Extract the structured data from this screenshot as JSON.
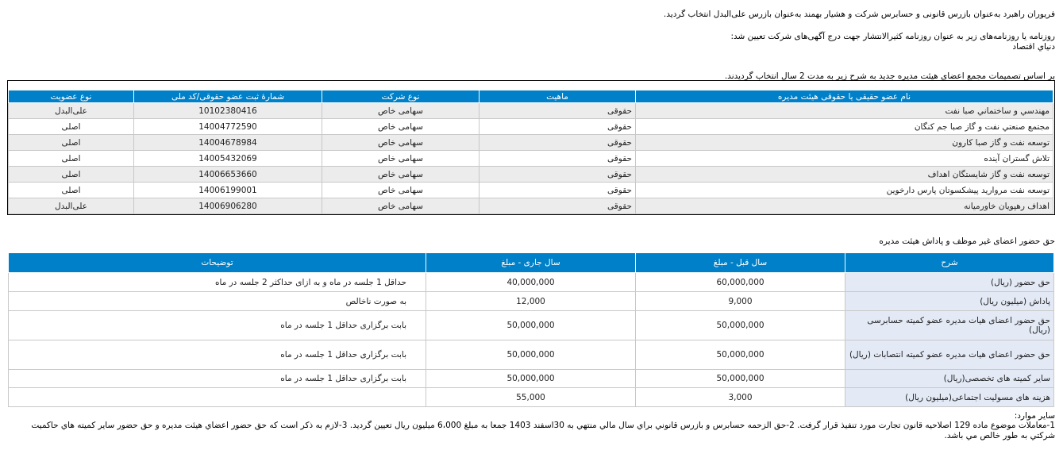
{
  "paragraphs": {
    "inspectors": "فریوران راهبرد  به‌عنوان بازرس قانونی و حسابرس شرکت و   هشیار بهمند  به‌عنوان بازرس علی‌البدل انتخاب گردید.",
    "newspaper_intro": "روزنامه یا روزنامه‌های زیر به عنوان روزنامه کثیرالانتشار جهت درج آگهی‌های شرکت تعیین شد:",
    "newspaper_name": "دنیاي اقتصاد",
    "board_intro": "بر اساس تصمیمات مجمع اعضای هیئت مدیره جدید به شرح زیر به مدت 2 سال انتخاب گردیدند."
  },
  "board_table": {
    "headers": [
      "نام عضو حقیقی یا حقوقی هیئت مدیره",
      "ماهیت",
      "نوع شرکت",
      "شمارهٔ ثبت عضو حقوقی/کد ملی",
      "نوع عضویت"
    ],
    "rows": [
      [
        "مهندسي و ساختماني صبا نفت",
        "حقوقی",
        "سهامی خاص",
        "10102380416",
        "علی‌البدل"
      ],
      [
        "مجتمع صنعتي نفت و گاز صبا جم كنگان",
        "حقوقی",
        "سهامی خاص",
        "14004772590",
        "اصلی"
      ],
      [
        "توسعه نفت و گاز صبا کارون",
        "حقوقی",
        "سهامی خاص",
        "14004678984",
        "اصلی"
      ],
      [
        "تلاش گستران آینده",
        "حقوقی",
        "سهامی خاص",
        "14005432069",
        "اصلی"
      ],
      [
        "توسعه نفت و گاز شایستگان اهداف",
        "حقوقی",
        "سهامی خاص",
        "14006653660",
        "اصلی"
      ],
      [
        "توسعه نفت مروارید پیشکسوتان پارس دارخوین",
        "حقوقی",
        "سهامی خاص",
        "14006199001",
        "اصلی"
      ],
      [
        "اهداف رهپویان خاورمیانه",
        "حقوقی",
        "سهامی خاص",
        "14006906280",
        "علی‌البدل"
      ]
    ]
  },
  "fees": {
    "title": "حق حضور اعضای غیر موظف و پاداش هیئت مدیره",
    "headers": [
      "شرح",
      "سال قبل - مبلغ",
      "سال جاری - مبلغ",
      "توضیحات"
    ],
    "rows": [
      [
        "حق حضور (ریال)",
        "60,000,000",
        "40,000,000",
        "حداقل   1    جلسه در ماه    و به ازای حداکثر 2    جلسه در ماه"
      ],
      [
        "پاداش (میلیون ریال)",
        "9,000",
        "12,000",
        "به صورت ناخالص"
      ],
      [
        "حق حضور اعضای هیات مدیره عضو کمیته حسابرسی (ریال)",
        "50,000,000",
        "50,000,000",
        "بابت برگزاری حداقل 1 جلسه در ماه"
      ],
      [
        "حق حضور اعضای هیات مدیره عضو کمیته انتصابات (ریال)",
        "50,000,000",
        "50,000,000",
        "بابت برگزاری حداقل 1 جلسه در ماه"
      ],
      [
        "سایر کمیته های تخصصی(ریال)",
        "50,000,000",
        "50,000,000",
        "بابت برگزاری حداقل 1 جلسه در ماه"
      ],
      [
        "هزینه های مسولیت اجتماعی(میلیون ریال)",
        "3,000",
        "55,000",
        ""
      ]
    ]
  },
  "other": {
    "label": "سایر موارد:",
    "line1": "1-معاملات موضوع ماده 129 اصلاحیه قانون تجارت مورد تنفیذ قرار گرفت. 2-حق الزحمه حسابرس و بازرس قانوني براي سال مالي منتهي به 30اسفند 1403 جمعا به مبلغ 6،000 ميليون ريال تعيين گرديد. 3-لازم به ذكر است كه حق حضور اعضاي هيئت مديره و حق حضور ساير كميته هاي حاكميت",
    "line2": "شركتي به طور خالص مي باشد."
  },
  "colors": {
    "header_bg": "#0080c8",
    "stripe": "#ececec",
    "label_cell": "#e3eaf6"
  }
}
